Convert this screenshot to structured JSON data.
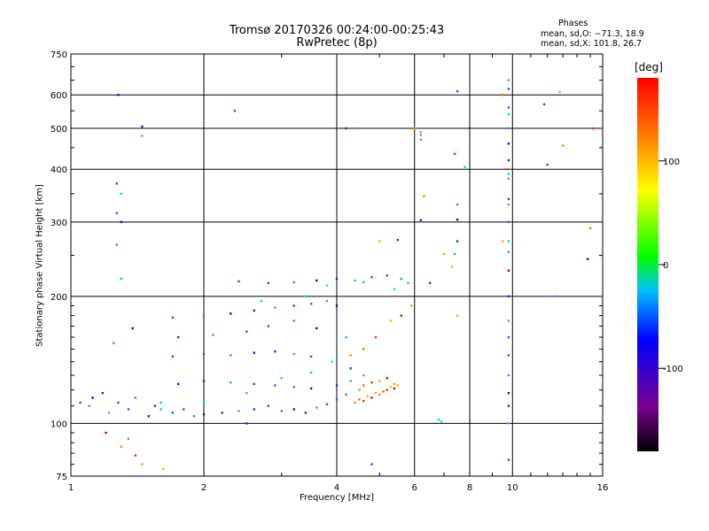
{
  "title": {
    "line1": "Tromsø 20170326 00:24:00-00:25:43",
    "line2": "RwPretec (8p)"
  },
  "phases": {
    "heading": "Phases",
    "o_mode": "mean, sd,O: −71.3, 18.9",
    "x_mode": "mean, sd,X: 101.8, 26.7"
  },
  "colors": {
    "grid": "#000000",
    "scale": [
      "#000000",
      "#7a0090",
      "#0000ff",
      "#00c0ff",
      "#00ff00",
      "#ffff00",
      "#ff8000",
      "#ff0000"
    ]
  },
  "chart_data": {
    "type": "scatter",
    "xlabel": "Frequency [MHz]",
    "ylabel": "Stationary phase Virtual Height [km]",
    "xscale": "log",
    "yscale": "log",
    "xlim": [
      1,
      16
    ],
    "ylim": [
      75,
      750
    ],
    "xticks": [
      1,
      2,
      4,
      6,
      8,
      10,
      16
    ],
    "yticks": [
      75,
      100,
      200,
      300,
      400,
      500,
      600,
      750
    ],
    "grid": true,
    "colorbar": {
      "label": "[deg]",
      "range": [
        -180,
        180
      ],
      "ticks": [
        100,
        0,
        -100
      ]
    },
    "series": [
      {
        "mode": "O (blue, phase ≈ −70 deg)",
        "points": [
          [
            1.05,
            112
          ],
          [
            1.1,
            110
          ],
          [
            1.12,
            115
          ],
          [
            1.18,
            118
          ],
          [
            1.22,
            106
          ],
          [
            1.28,
            112
          ],
          [
            1.35,
            108
          ],
          [
            1.4,
            115
          ],
          [
            1.5,
            104
          ],
          [
            1.55,
            110
          ],
          [
            1.6,
            112
          ],
          [
            1.7,
            106
          ],
          [
            1.8,
            108
          ],
          [
            1.9,
            104
          ],
          [
            2.0,
            105
          ],
          [
            2.2,
            106
          ],
          [
            2.4,
            107
          ],
          [
            2.6,
            108
          ],
          [
            2.8,
            110
          ],
          [
            3.0,
            107
          ],
          [
            3.2,
            108
          ],
          [
            3.4,
            106
          ],
          [
            3.6,
            109
          ],
          [
            3.8,
            111
          ],
          [
            4.0,
            114
          ],
          [
            4.2,
            117
          ],
          [
            1.75,
            124
          ],
          [
            2.0,
            126
          ],
          [
            2.3,
            125
          ],
          [
            2.6,
            124
          ],
          [
            2.9,
            123
          ],
          [
            3.2,
            122
          ],
          [
            3.5,
            121
          ],
          [
            4.0,
            123
          ],
          [
            4.3,
            126
          ],
          [
            1.7,
            144
          ],
          [
            2.0,
            146
          ],
          [
            2.3,
            145
          ],
          [
            2.6,
            147
          ],
          [
            2.9,
            148
          ],
          [
            3.2,
            146
          ],
          [
            3.5,
            144
          ],
          [
            1.7,
            178
          ],
          [
            2.0,
            180
          ],
          [
            2.3,
            182
          ],
          [
            2.6,
            185
          ],
          [
            2.9,
            188
          ],
          [
            3.2,
            190
          ],
          [
            3.5,
            192
          ],
          [
            3.8,
            195
          ],
          [
            4.0,
            190
          ],
          [
            1.75,
            160
          ],
          [
            2.1,
            162
          ],
          [
            2.5,
            165
          ],
          [
            2.8,
            170
          ],
          [
            3.2,
            175
          ],
          [
            3.6,
            168
          ],
          [
            4.3,
            135
          ],
          [
            4.6,
            130
          ],
          [
            2.4,
            217
          ],
          [
            2.8,
            215
          ],
          [
            3.2,
            216
          ],
          [
            3.6,
            218
          ],
          [
            4.0,
            220
          ],
          [
            4.4,
            218
          ],
          [
            4.8,
            222
          ],
          [
            5.2,
            224
          ],
          [
            5.6,
            220
          ],
          [
            1.28,
            600
          ],
          [
            1.45,
            505
          ],
          [
            1.45,
            480
          ],
          [
            1.27,
            370
          ],
          [
            1.27,
            315
          ],
          [
            1.27,
            265
          ],
          [
            1.3,
            300
          ],
          [
            4.2,
            500
          ],
          [
            4.4,
            500
          ],
          [
            2.35,
            550
          ],
          [
            7.5,
            612
          ],
          [
            7.5,
            330
          ],
          [
            7.5,
            304
          ],
          [
            7.5,
            270
          ],
          [
            7.4,
            252
          ],
          [
            11.8,
            570
          ],
          [
            12.0,
            410
          ],
          [
            12.5,
            200
          ],
          [
            14.8,
            245
          ],
          [
            6.2,
            303
          ],
          [
            9.8,
            650
          ],
          [
            9.8,
            620
          ],
          [
            9.8,
            560
          ],
          [
            9.8,
            500
          ],
          [
            9.8,
            460
          ],
          [
            9.8,
            420
          ],
          [
            9.8,
            380
          ],
          [
            9.8,
            340
          ],
          [
            9.8,
            300
          ],
          [
            9.8,
            255
          ],
          [
            9.8,
            230
          ],
          [
            9.8,
            200
          ],
          [
            9.8,
            175
          ],
          [
            9.8,
            160
          ],
          [
            9.8,
            145
          ],
          [
            9.8,
            130
          ],
          [
            9.8,
            118
          ],
          [
            9.8,
            110
          ],
          [
            9.8,
            100
          ],
          [
            9.8,
            82
          ],
          [
            4.8,
            80
          ],
          [
            1.25,
            155
          ],
          [
            1.38,
            168
          ],
          [
            2.5,
            100
          ]
        ]
      },
      {
        "mode": "X (orange/red, phase ≈ +100 deg)",
        "points": [
          [
            4.4,
            112
          ],
          [
            4.5,
            114
          ],
          [
            4.6,
            113
          ],
          [
            4.7,
            116
          ],
          [
            4.8,
            115
          ],
          [
            4.9,
            118
          ],
          [
            5.0,
            117
          ],
          [
            5.1,
            119
          ],
          [
            5.2,
            120
          ],
          [
            5.3,
            122
          ],
          [
            5.4,
            121
          ],
          [
            5.5,
            123
          ],
          [
            4.5,
            120
          ],
          [
            4.6,
            123
          ],
          [
            4.8,
            125
          ],
          [
            5.0,
            126
          ],
          [
            5.2,
            128
          ],
          [
            5.4,
            124
          ],
          [
            4.3,
            145
          ],
          [
            4.6,
            150
          ],
          [
            4.9,
            160
          ],
          [
            5.3,
            175
          ],
          [
            5.6,
            180
          ],
          [
            5.9,
            190
          ],
          [
            1.3,
            88
          ],
          [
            1.35,
            92
          ],
          [
            1.4,
            84
          ],
          [
            1.62,
            78
          ],
          [
            1.2,
            95
          ],
          [
            1.45,
            80
          ],
          [
            6.0,
            500
          ],
          [
            6.2,
            482
          ],
          [
            7.4,
            435
          ],
          [
            7.3,
            235
          ],
          [
            6.5,
            215
          ],
          [
            7.0,
            252
          ],
          [
            6.3,
            345
          ],
          [
            9.5,
            600
          ],
          [
            9.7,
            400
          ],
          [
            9.5,
            270
          ],
          [
            9.8,
            230
          ],
          [
            12.8,
            610
          ],
          [
            13.0,
            455
          ],
          [
            15.0,
            290
          ],
          [
            15.2,
            500
          ],
          [
            5.0,
            270
          ],
          [
            5.5,
            272
          ],
          [
            7.5,
            180
          ]
        ]
      },
      {
        "mode": "cyan (phase ≈ −50 deg)",
        "points": [
          [
            1.6,
            108
          ],
          [
            2.0,
            112
          ],
          [
            2.5,
            118
          ],
          [
            3.0,
            128
          ],
          [
            3.5,
            132
          ],
          [
            3.9,
            140
          ],
          [
            4.2,
            160
          ],
          [
            2.7,
            195
          ],
          [
            3.4,
            200
          ],
          [
            3.8,
            212
          ],
          [
            4.6,
            216
          ],
          [
            5.4,
            208
          ],
          [
            5.8,
            215
          ],
          [
            6.2,
            490
          ],
          [
            6.2,
            470
          ],
          [
            7.8,
            405
          ],
          [
            6.8,
            102
          ],
          [
            6.9,
            101
          ],
          [
            1.3,
            220
          ],
          [
            1.3,
            350
          ],
          [
            9.8,
            540
          ],
          [
            9.8,
            390
          ],
          [
            9.8,
            330
          ],
          [
            9.8,
            270
          ]
        ]
      }
    ]
  }
}
